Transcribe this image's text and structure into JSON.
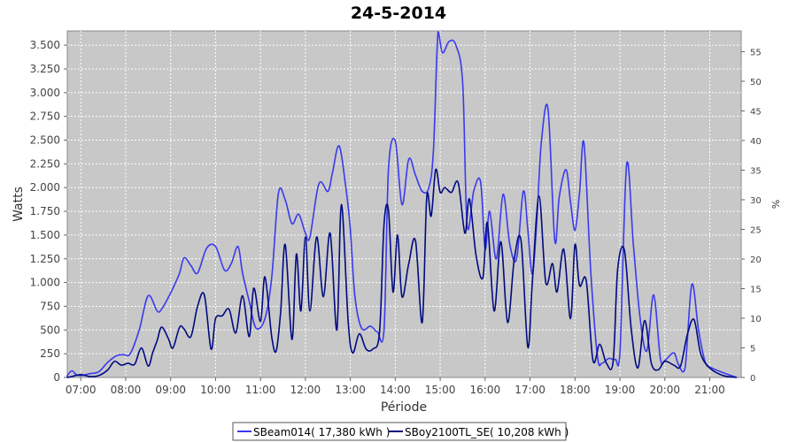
{
  "chart_data": {
    "type": "line",
    "title": "24-5-2014",
    "xlabel": "Période",
    "ylabel": "Watts",
    "y2label": "%",
    "x_tick_labels": [
      "07:00",
      "08:00",
      "09:00",
      "10:00",
      "11:00",
      "12:00",
      "13:00",
      "14:00",
      "15:00",
      "16:00",
      "17:00",
      "18:00",
      "19:00",
      "20:00",
      "21:00"
    ],
    "y_tick_labels": [
      "0",
      "250",
      "500",
      "750",
      "1.000",
      "1.250",
      "1.500",
      "1.750",
      "2.000",
      "2.250",
      "2.500",
      "2.750",
      "3.000",
      "3.250",
      "3.500"
    ],
    "y_ticks": [
      0,
      250,
      500,
      750,
      1000,
      1250,
      1500,
      1750,
      2000,
      2250,
      2500,
      2750,
      3000,
      3250,
      3500
    ],
    "y2_ticks": [
      0,
      5,
      10,
      15,
      20,
      25,
      30,
      35,
      40,
      45,
      50,
      55
    ],
    "y2_tick_labels": [
      "0",
      "5",
      "10",
      "15",
      "20",
      "25",
      "30",
      "35",
      "40",
      "45",
      "50",
      "55"
    ],
    "xlim": [
      6.7,
      21.7
    ],
    "ylim": [
      0,
      3650
    ],
    "y2lim": [
      0,
      58.5
    ],
    "grid": true,
    "background": "#c8c8c8",
    "legend_position": "bottom",
    "series": [
      {
        "name": "SBeam014( 17,380 kWh )",
        "color": "#3a3aee",
        "x": [
          6.3,
          6.5,
          6.7,
          6.8,
          6.9,
          7.0,
          7.2,
          7.4,
          7.6,
          7.8,
          7.95,
          8.1,
          8.3,
          8.5,
          8.7,
          8.8,
          9.0,
          9.1,
          9.2,
          9.3,
          9.45,
          9.6,
          9.8,
          10.0,
          10.2,
          10.35,
          10.5,
          10.6,
          10.75,
          10.9,
          11.1,
          11.25,
          11.4,
          11.55,
          11.7,
          11.85,
          12.0,
          12.1,
          12.3,
          12.5,
          12.6,
          12.75,
          12.9,
          13.0,
          13.1,
          13.25,
          13.45,
          13.6,
          13.75,
          13.85,
          14.0,
          14.15,
          14.3,
          14.45,
          14.6,
          14.75,
          14.85,
          14.95,
          15.05,
          15.2,
          15.35,
          15.5,
          15.6,
          15.75,
          15.9,
          16.0,
          16.1,
          16.25,
          16.4,
          16.55,
          16.7,
          16.85,
          16.95,
          17.05,
          17.15,
          17.25,
          17.4,
          17.55,
          17.65,
          17.8,
          17.9,
          18.0,
          18.1,
          18.2,
          18.35,
          18.5,
          18.6,
          18.75,
          18.9,
          19.0,
          19.15,
          19.3,
          19.45,
          19.6,
          19.75,
          19.9,
          20.0,
          20.2,
          20.3,
          20.45,
          20.6,
          20.75,
          20.9,
          21.05,
          21.3,
          21.6
        ],
        "y": [
          0,
          10,
          20,
          70,
          30,
          20,
          40,
          60,
          160,
          230,
          240,
          250,
          500,
          860,
          700,
          720,
          890,
          990,
          1100,
          1260,
          1180,
          1100,
          1360,
          1380,
          1130,
          1200,
          1380,
          1100,
          800,
          520,
          620,
          1050,
          1940,
          1870,
          1620,
          1720,
          1520,
          1480,
          2040,
          1960,
          2150,
          2440,
          2000,
          1560,
          860,
          520,
          540,
          480,
          510,
          2200,
          2490,
          1820,
          2300,
          2130,
          1960,
          2000,
          2400,
          3640,
          3420,
          3540,
          3500,
          3100,
          1600,
          1970,
          2060,
          1350,
          1750,
          1250,
          1930,
          1400,
          1250,
          1960,
          1560,
          1090,
          1650,
          2470,
          2830,
          1440,
          1900,
          2190,
          1850,
          1550,
          1940,
          2470,
          1130,
          220,
          150,
          200,
          190,
          250,
          2240,
          1400,
          620,
          280,
          870,
          200,
          180,
          260,
          140,
          100,
          980,
          500,
          160,
          100,
          50,
          0
        ]
      },
      {
        "name": "SBoy2100TL_SE( 10,208 kWh )",
        "color": "#000a80",
        "x": [
          6.3,
          6.6,
          6.8,
          7.0,
          7.2,
          7.4,
          7.6,
          7.75,
          7.9,
          8.05,
          8.2,
          8.35,
          8.5,
          8.6,
          8.7,
          8.8,
          8.95,
          9.05,
          9.2,
          9.3,
          9.45,
          9.6,
          9.75,
          9.9,
          10.0,
          10.15,
          10.3,
          10.45,
          10.6,
          10.75,
          10.85,
          11.0,
          11.1,
          11.25,
          11.35,
          11.45,
          11.55,
          11.7,
          11.8,
          11.9,
          12.0,
          12.1,
          12.25,
          12.4,
          12.55,
          12.7,
          12.8,
          12.95,
          13.05,
          13.2,
          13.35,
          13.5,
          13.65,
          13.75,
          13.85,
          13.95,
          14.05,
          14.15,
          14.3,
          14.45,
          14.6,
          14.7,
          14.8,
          14.9,
          15.0,
          15.1,
          15.25,
          15.4,
          15.55,
          15.65,
          15.8,
          15.95,
          16.05,
          16.2,
          16.35,
          16.5,
          16.65,
          16.8,
          16.95,
          17.05,
          17.2,
          17.35,
          17.5,
          17.6,
          17.75,
          17.9,
          18.0,
          18.1,
          18.25,
          18.4,
          18.55,
          18.7,
          18.85,
          18.95,
          19.1,
          19.25,
          19.4,
          19.55,
          19.7,
          19.85,
          20.0,
          20.2,
          20.35,
          20.5,
          20.65,
          20.8,
          21.0,
          21.3,
          21.6
        ],
        "y": [
          0,
          0,
          10,
          30,
          10,
          20,
          80,
          170,
          130,
          150,
          140,
          310,
          120,
          260,
          390,
          530,
          410,
          310,
          530,
          510,
          430,
          750,
          870,
          300,
          620,
          650,
          720,
          470,
          860,
          430,
          940,
          590,
          1060,
          430,
          280,
          700,
          1400,
          400,
          1300,
          700,
          1480,
          700,
          1480,
          850,
          1520,
          500,
          1820,
          600,
          260,
          460,
          300,
          300,
          480,
          1620,
          1760,
          900,
          1500,
          850,
          1200,
          1440,
          580,
          1900,
          1700,
          2190,
          1950,
          2000,
          1950,
          2050,
          1520,
          1880,
          1280,
          1050,
          1630,
          700,
          1430,
          580,
          1250,
          1440,
          320,
          1000,
          1910,
          1000,
          1200,
          900,
          1350,
          620,
          1400,
          970,
          1020,
          180,
          350,
          150,
          170,
          1140,
          1340,
          520,
          100,
          600,
          150,
          80,
          170,
          130,
          120,
          450,
          610,
          250,
          100,
          20,
          0
        ]
      }
    ]
  }
}
